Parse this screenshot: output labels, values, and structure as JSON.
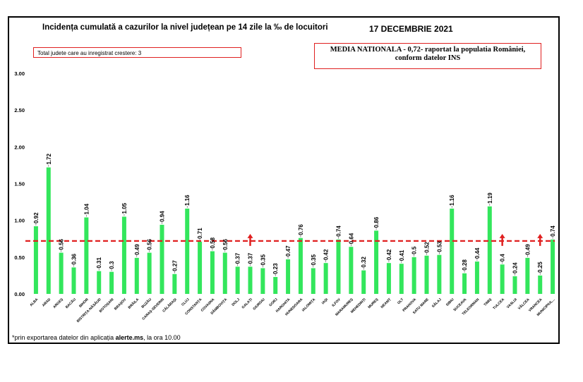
{
  "header": {
    "title": "Incidența cumulată a cazurilor la nivel județean pe 14 zile la ‰ de locuitori",
    "date": "17 DECEMBRIE 2021"
  },
  "notes": {
    "increase_box": "Total judete care au inregistrat crestere: 3",
    "national_line1": "MEDIA NATIONALA - 0,72-  raportat la populatia României,",
    "national_line2": "conform datelor INS"
  },
  "footer": {
    "prefix": "*prin exportarea datelor din aplicația ",
    "app": "alerte.ms",
    "suffix": ", la ora 10.00"
  },
  "colors": {
    "bar": "#33e65c",
    "reference_line": "#e02020",
    "arrow": "#e02020",
    "text": "#000000"
  },
  "chart_data": {
    "type": "bar",
    "title": "Incidența cumulată a cazurilor la nivel județean pe 14 zile la ‰ de locuitori",
    "categories": [
      "ALBA",
      "ARAD",
      "ARGEȘ",
      "BACĂU",
      "BIHOR",
      "BISTRIȚA-NĂSĂUD",
      "BOTOȘANI",
      "BRAȘOV",
      "BRĂILA",
      "BUZĂU",
      "CARAȘ-SEVERIN",
      "CĂLĂRAȘI",
      "CLUJ",
      "CONSTANȚA",
      "COVASNA",
      "DÂMBOVIȚA",
      "DOLJ",
      "GALAȚI",
      "GIURGIU",
      "GORJ",
      "HARGHITA",
      "HUNEDOARA",
      "IALOMIȚA",
      "IAȘI",
      "ILFOV",
      "MARAMUREȘ",
      "MEHEDINȚI",
      "MUREȘ",
      "NEAMȚ",
      "OLT",
      "PRAHOVA",
      "SATU MARE",
      "SĂLAJ",
      "SIBIU",
      "SUCEAVA",
      "TELEORMAN",
      "TIMIȘ",
      "TULCEA",
      "VASLUI",
      "VÂLCEA",
      "VRANCEA",
      "MUNICIPIUL..."
    ],
    "values": [
      0.92,
      1.72,
      0.56,
      0.36,
      1.04,
      0.31,
      0.3,
      1.05,
      0.49,
      0.56,
      0.94,
      0.27,
      1.16,
      0.71,
      0.58,
      0.56,
      0.37,
      0.37,
      0.35,
      0.23,
      0.47,
      0.76,
      0.35,
      0.42,
      0.74,
      0.64,
      0.32,
      0.86,
      0.42,
      0.41,
      0.5,
      0.52,
      0.53,
      1.16,
      0.28,
      0.44,
      1.19,
      0.4,
      0.24,
      0.49,
      0.25,
      0.74
    ],
    "value_labels": [
      "0.92",
      "1.72",
      "0.56",
      "0.36",
      "1.04",
      "0.31",
      "0.3",
      "1.05",
      "0.49",
      "0.56",
      "0.94",
      "0.27",
      "1.16",
      "0.71",
      "0.58",
      "0.56",
      "0.37",
      "0.37",
      "0.35",
      "0.23",
      "0.47",
      "0.76",
      "0.35",
      "0.42",
      "0.74",
      "0.64",
      "0.32",
      "0.86",
      "0.42",
      "0.41",
      "0.5",
      "0.52",
      "0.53",
      "1.16",
      "0.28",
      "0.44",
      "1.19",
      "0.4",
      "0.24",
      "0.49",
      "0.25",
      "0.74"
    ],
    "increase_markers": [
      "GALAȚI",
      "TULCEA",
      "VRANCEA"
    ],
    "reference_value": 0.72,
    "ylim": [
      0,
      3
    ],
    "yticks": [
      "0.00",
      "0.50",
      "1.00",
      "1.50",
      "2.00",
      "2.50",
      "3.00"
    ],
    "grid": false,
    "xlabel": "",
    "ylabel": ""
  }
}
